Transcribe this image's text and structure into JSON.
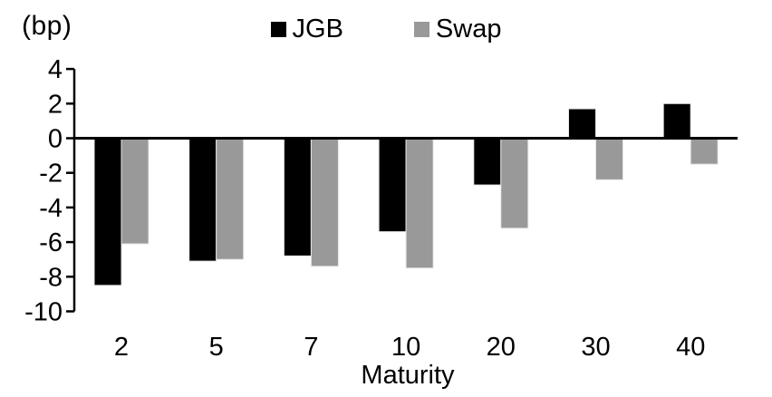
{
  "chart_data": {
    "type": "bar",
    "title": "",
    "categories": [
      "2",
      "5",
      "7",
      "10",
      "20",
      "30",
      "40"
    ],
    "series": [
      {
        "name": "JGB",
        "color": "#000000",
        "values": [
          -8.5,
          -7.1,
          -6.8,
          -5.4,
          -2.7,
          1.7,
          2.0
        ]
      },
      {
        "name": "Swap",
        "color": "#999999",
        "values": [
          -6.1,
          -7.0,
          -7.4,
          -7.5,
          -5.2,
          -2.4,
          -1.5
        ]
      }
    ],
    "xlabel": "Maturity",
    "ylabel": "(bp)",
    "ylim": [
      -10,
      4
    ],
    "ytick_step": 2,
    "ytick_labels": [
      "4",
      "2",
      "0",
      "-2",
      "-4",
      "-6",
      "-8",
      "-10"
    ],
    "grid": false,
    "legend_position": "top-center",
    "axis_color": "#000000",
    "bar_outline_color": "#e6e6e6"
  }
}
